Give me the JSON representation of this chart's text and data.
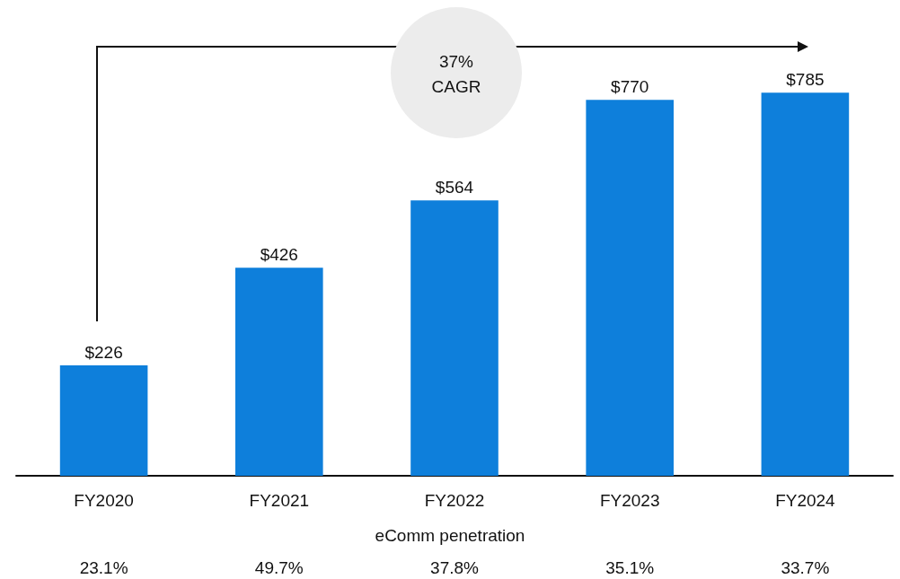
{
  "chart_data": {
    "type": "bar",
    "categories": [
      "FY2020",
      "FY2021",
      "FY2022",
      "FY2023",
      "FY2024"
    ],
    "values": [
      226,
      426,
      564,
      770,
      785
    ],
    "value_labels": [
      "$226",
      "$426",
      "$564",
      "$770",
      "$785"
    ],
    "color": "#0e7fdb",
    "grid": false,
    "annotations": [
      "37% CAGR",
      "eComm penetration",
      "23.1%",
      "49.7%",
      "37.8%",
      "35.1%",
      "33.7%"
    ]
  }
}
